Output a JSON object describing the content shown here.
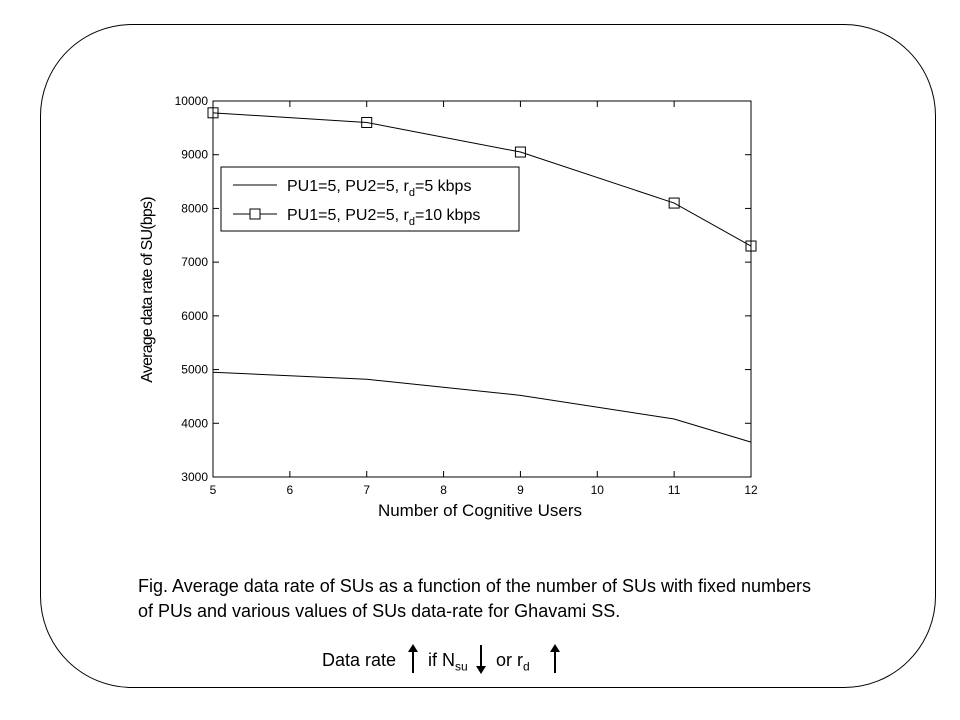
{
  "chart_data": {
    "type": "line",
    "xlabel": "Number of Cognitive Users",
    "ylabel": "Average data rate of SU(bps)",
    "xlim": [
      5,
      12
    ],
    "ylim": [
      3000,
      10000
    ],
    "xticks": [
      5,
      6,
      7,
      8,
      9,
      10,
      11,
      12
    ],
    "yticks": [
      3000,
      4000,
      5000,
      6000,
      7000,
      8000,
      9000,
      10000
    ],
    "grid": false,
    "legend_position": "upper-left",
    "series": [
      {
        "name": "PU1=5, PU2=5, r_d=5 kbps",
        "legend_main": "PU1=5, PU2=5, r",
        "legend_sub": "d",
        "legend_tail": "=5 kbps",
        "marker": "none",
        "x": [
          5,
          7,
          9,
          11,
          12
        ],
        "values": [
          4950,
          4820,
          4520,
          4080,
          3650
        ]
      },
      {
        "name": "PU1=5, PU2=5, r_d=10 kbps",
        "legend_main": "PU1=5, PU2=5, r",
        "legend_sub": "d",
        "legend_tail": "=10 kbps",
        "marker": "square",
        "x": [
          5,
          7,
          9,
          11,
          12
        ],
        "values": [
          9780,
          9600,
          9050,
          8100,
          7300
        ]
      }
    ]
  },
  "caption": "Fig. Average data rate of SUs as a function of the number of SUs with fixed numbers of PUs and various values of SUs data-rate for Ghavami SS.",
  "data_rate_note": {
    "part1": "Data rate",
    "part2": "if N",
    "sub_su": "su",
    "part3": "or r",
    "sub_d": "d"
  }
}
